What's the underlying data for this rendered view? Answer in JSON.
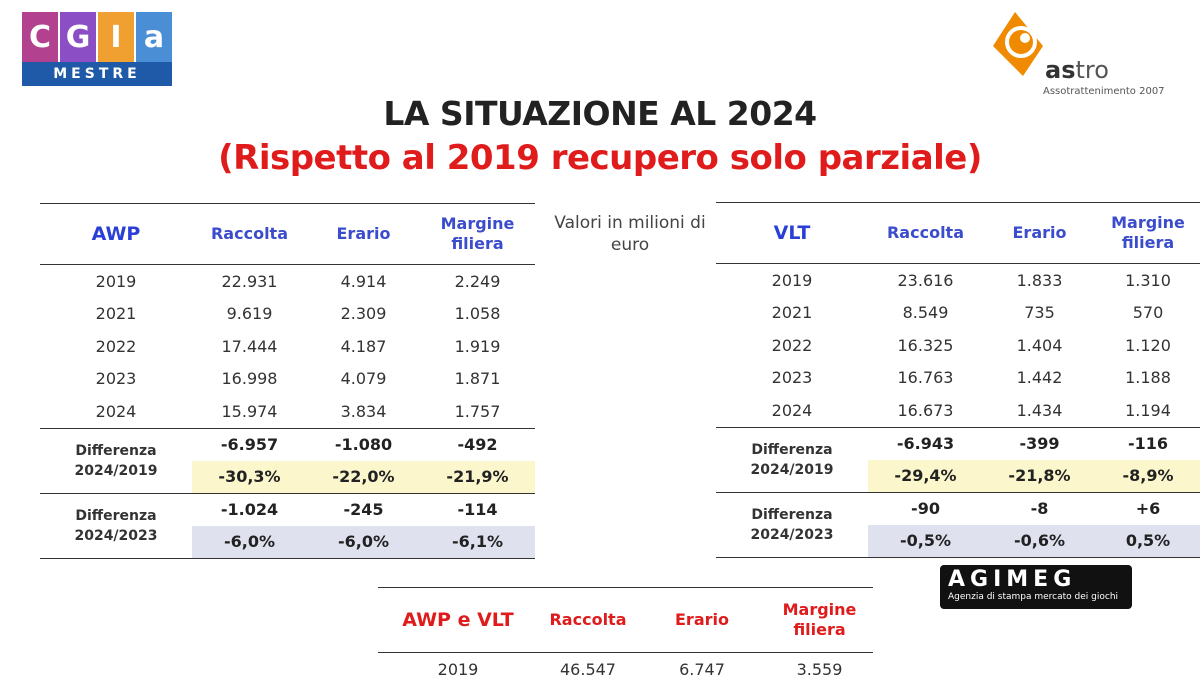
{
  "logos": {
    "cgia": {
      "letters": [
        "C",
        "G",
        "I",
        "a"
      ],
      "colors": [
        "#b2418f",
        "#8c4ec4",
        "#f0a030",
        "#4a8fd6"
      ],
      "subtitle": "MESTRE"
    },
    "astro": {
      "name_bold": "as",
      "name_rest": "tro",
      "subtitle": "Assotrattenimento 2007",
      "accent": "#f08a00"
    },
    "agimeg": {
      "name": "AGIMEG",
      "subtitle": "Agenzia di stampa mercato dei giochi"
    }
  },
  "title": "LA SITUAZIONE AL 2024",
  "subtitle": "(Rispetto al 2019 recupero solo parziale)",
  "note": "Valori in milioni di euro",
  "tables": {
    "awp": {
      "label": "AWP",
      "headers": [
        "Raccolta",
        "Erario",
        "Margine filiera"
      ],
      "rows": [
        {
          "year": "2019",
          "values": [
            "22.931",
            "4.914",
            "2.249"
          ]
        },
        {
          "year": "2021",
          "values": [
            "9.619",
            "2.309",
            "1.058"
          ]
        },
        {
          "year": "2022",
          "values": [
            "17.444",
            "4.187",
            "1.919"
          ]
        },
        {
          "year": "2023",
          "values": [
            "16.998",
            "4.079",
            "1.871"
          ]
        },
        {
          "year": "2024",
          "values": [
            "15.974",
            "3.834",
            "1.757"
          ]
        }
      ],
      "diffs": [
        {
          "label1": "Differenza",
          "label2": "2024/2019",
          "abs": [
            "-6.957",
            "-1.080",
            "-492"
          ],
          "pct": [
            "-30,3%",
            "-22,0%",
            "-21,9%"
          ]
        },
        {
          "label1": "Differenza",
          "label2": "2024/2023",
          "abs": [
            "-1.024",
            "-245",
            "-114"
          ],
          "pct": [
            "-6,0%",
            "-6,0%",
            "-6,1%"
          ]
        }
      ]
    },
    "vlt": {
      "label": "VLT",
      "headers": [
        "Raccolta",
        "Erario",
        "Margine filiera"
      ],
      "rows": [
        {
          "year": "2019",
          "values": [
            "23.616",
            "1.833",
            "1.310"
          ]
        },
        {
          "year": "2021",
          "values": [
            "8.549",
            "735",
            "570"
          ]
        },
        {
          "year": "2022",
          "values": [
            "16.325",
            "1.404",
            "1.120"
          ]
        },
        {
          "year": "2023",
          "values": [
            "16.763",
            "1.442",
            "1.188"
          ]
        },
        {
          "year": "2024",
          "values": [
            "16.673",
            "1.434",
            "1.194"
          ]
        }
      ],
      "diffs": [
        {
          "label1": "Differenza",
          "label2": "2024/2019",
          "abs": [
            "-6.943",
            "-399",
            "-116"
          ],
          "pct": [
            "-29,4%",
            "-21,8%",
            "-8,9%"
          ]
        },
        {
          "label1": "Differenza",
          "label2": "2024/2023",
          "abs": [
            "-90",
            "-8",
            "+6"
          ],
          "pct": [
            "-0,5%",
            "-0,6%",
            "0,5%"
          ]
        }
      ]
    },
    "total": {
      "label": "AWP e VLT",
      "headers": [
        "Raccolta",
        "Erario",
        "Margine filiera"
      ],
      "rows": [
        {
          "year": "2019",
          "values": [
            "46.547",
            "6.747",
            "3.559"
          ]
        }
      ]
    }
  }
}
